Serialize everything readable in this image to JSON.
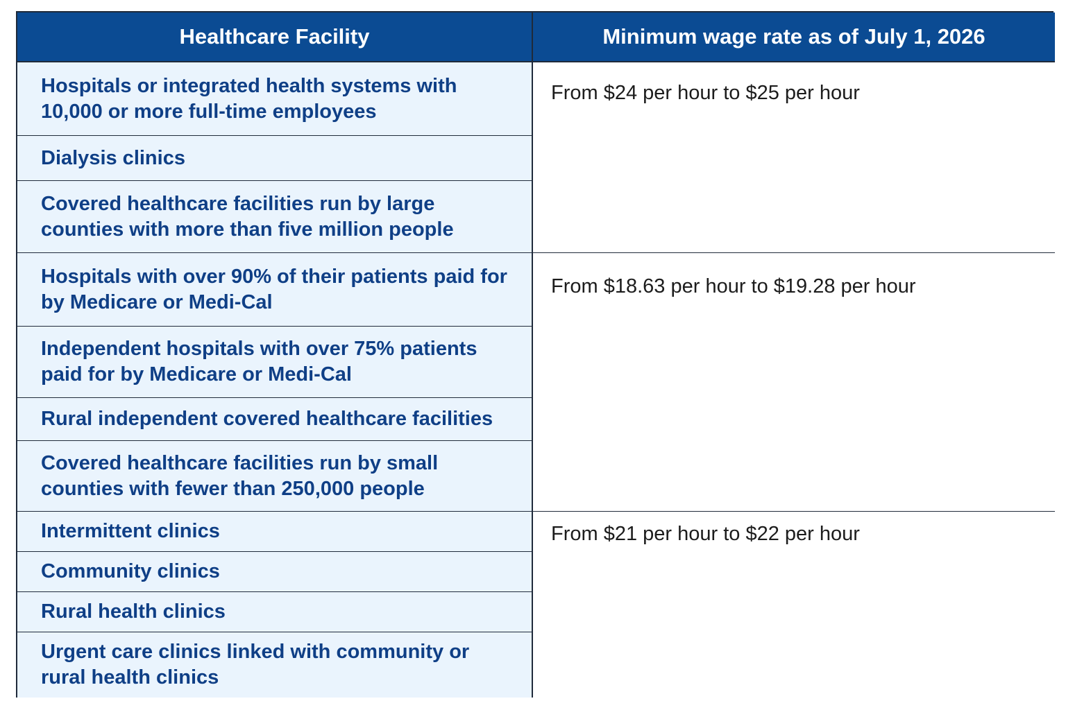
{
  "table": {
    "headers": [
      "Healthcare Facility",
      "Minimum wage rate as of July 1, 2026"
    ],
    "groups": [
      {
        "rate": "From $24 per hour to $25 per hour",
        "facilities": [
          "Hospitals or integrated health systems with 10,000 or more full-time employees",
          "Dialysis clinics",
          "Covered healthcare facilities run by large counties with more than five million people"
        ]
      },
      {
        "rate": "From $18.63 per hour to $19.28 per hour",
        "facilities": [
          "Hospitals with over 90% of their patients paid for by Medicare or Medi-Cal",
          "Independent hospitals with over 75% patients paid for by Medicare or Medi-Cal",
          "Rural independent covered healthcare facilities",
          "Covered healthcare facilities run by small counties with fewer than 250,000 people"
        ]
      },
      {
        "rate": "From $21 per hour to $22 per hour",
        "facilities": [
          "Intermittent clinics",
          "Community clinics",
          "Rural health clinics",
          "Urgent care clinics linked with community or rural health clinics"
        ]
      }
    ]
  },
  "colors": {
    "header_bg": "#0b4b93",
    "header_text": "#ffffff",
    "facility_bg": "#eaf4fd",
    "facility_text": "#0f3f86",
    "rate_text": "#1c1c1c",
    "border": "#1f2a3a"
  }
}
